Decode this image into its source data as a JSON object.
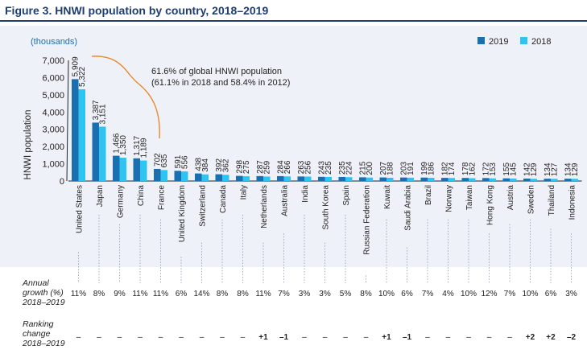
{
  "figure": {
    "title": "Figure 3. HNWI population by country, 2018–2019",
    "units_note": "(thousands)",
    "annotation_line1": "61.6% of global HNWI population",
    "annotation_line2": "(61.1% in 2018 and 58.4% in 2012)",
    "growth_label": [
      "Annual",
      "growth (%)",
      "2018–2019"
    ],
    "rank_label": [
      "Ranking",
      "change",
      "2018–2019"
    ]
  },
  "colors": {
    "series_2019": "#1a6fb0",
    "series_2018": "#2ec4f1",
    "panel_bg": "#eef2f8",
    "positive": "#2e9a3a",
    "negative": "#d9302b"
  },
  "chart_data": {
    "type": "bar",
    "title": "Figure 3. HNWI population by country, 2018–2019",
    "ylabel": "HNWI population",
    "xlabel": "",
    "ylim": [
      0,
      7000
    ],
    "yticks": [
      "0",
      "1,000",
      "2,000",
      "3,000",
      "4,000",
      "5,000",
      "6,000",
      "7,000"
    ],
    "legend_position": "top-right",
    "grid": false,
    "categories": [
      "United States",
      "Japan",
      "Germany",
      "China",
      "France",
      "United Kingdom",
      "Switzerland",
      "Canada",
      "Italy",
      "Netherlands",
      "Australia",
      "India",
      "South Korea",
      "Spain",
      "Russian Federation",
      "Kuwait",
      "Saudi Arabia",
      "Brazil",
      "Norway",
      "Taiwan",
      "Hong Kong",
      "Austria",
      "Sweden",
      "Thailand",
      "Indonesia"
    ],
    "series": [
      {
        "name": "2019",
        "values": [
          5909,
          3387,
          1466,
          1317,
          702,
          591,
          438,
          392,
          298,
          287,
          284,
          263,
          243,
          235,
          215,
          207,
          203,
          199,
          182,
          178,
          172,
          155,
          142,
          134,
          134
        ],
        "labels": [
          "5,909",
          "3,387",
          "1,466",
          "1,317",
          "702",
          "591",
          "438",
          "392",
          "298",
          "287",
          "284",
          "263",
          "243",
          "235",
          "215",
          "207",
          "203",
          "199",
          "182",
          "178",
          "172",
          "155",
          "142",
          "134",
          "134"
        ]
      },
      {
        "name": "2018",
        "values": [
          5322,
          3151,
          1350,
          1189,
          635,
          556,
          384,
          362,
          275,
          259,
          266,
          256,
          235,
          224,
          200,
          188,
          191,
          186,
          174,
          162,
          153,
          145,
          129,
          127,
          129
        ],
        "labels": [
          "5,322",
          "3,151",
          "1,350",
          "1,189",
          "635",
          "556",
          "384",
          "362",
          "275",
          "259",
          "266",
          "256",
          "235",
          "224",
          "200",
          "188",
          "191",
          "186",
          "174",
          "162",
          "153",
          "145",
          "129",
          "127",
          "129"
        ]
      }
    ],
    "annual_growth": [
      "11%",
      "8%",
      "9%",
      "11%",
      "11%",
      "6%",
      "14%",
      "8%",
      "8%",
      "11%",
      "7%",
      "3%",
      "3%",
      "5%",
      "8%",
      "10%",
      "6%",
      "7%",
      "4%",
      "10%",
      "12%",
      "7%",
      "10%",
      "6%",
      "3%"
    ],
    "ranking_change": [
      "–",
      "–",
      "–",
      "–",
      "–",
      "–",
      "–",
      "–",
      "–",
      "+1",
      "–1",
      "–",
      "–",
      "–",
      "–",
      "+1",
      "–1",
      "–",
      "–",
      "–",
      "–",
      "–",
      "+2",
      "+2",
      "–2"
    ]
  }
}
